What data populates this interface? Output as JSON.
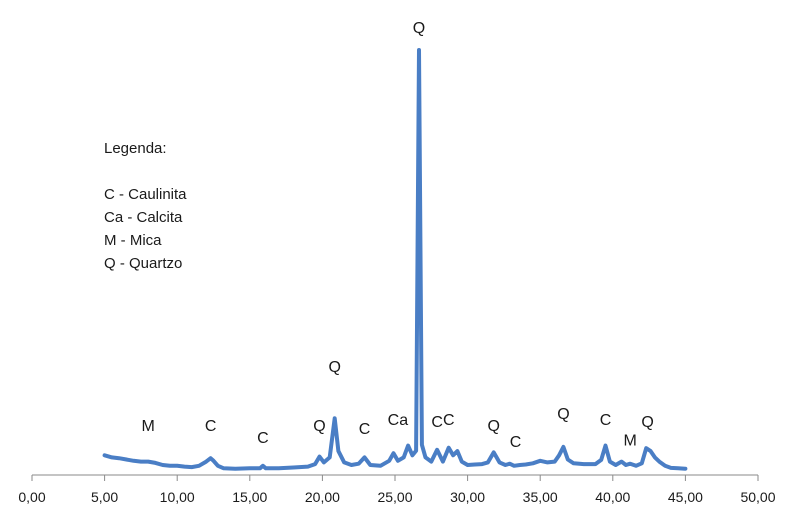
{
  "chart_data": {
    "type": "line",
    "title": "",
    "xlabel": "",
    "ylabel": "",
    "xlim": [
      0,
      50
    ],
    "ylim": [
      0,
      1
    ],
    "x_ticks": [
      "0,00",
      "5,00",
      "10,00",
      "15,00",
      "20,00",
      "25,00",
      "30,00",
      "35,00",
      "40,00",
      "45,00",
      "50,00"
    ],
    "grid": false,
    "color": "#4a7ec5",
    "series": [
      {
        "x": [
          5.0,
          5.5,
          6.0,
          6.5,
          7.0,
          7.5,
          8.0,
          8.5,
          9.0,
          9.5,
          10.0,
          10.5,
          11.0,
          11.5,
          12.0,
          12.3,
          12.5,
          12.8,
          13.2,
          14.0,
          15.0,
          15.7,
          15.9,
          16.1,
          17.0,
          18.0,
          19.0,
          19.5,
          19.8,
          20.1,
          20.5,
          20.85,
          21.1,
          21.5,
          22.0,
          22.5,
          22.9,
          23.3,
          24.0,
          24.6,
          24.9,
          25.2,
          25.6,
          25.9,
          26.2,
          26.45,
          26.65,
          26.85,
          27.1,
          27.5,
          27.9,
          28.3,
          28.7,
          29.0,
          29.3,
          29.6,
          30.0,
          30.5,
          31.0,
          31.4,
          31.8,
          32.2,
          32.6,
          32.9,
          33.2,
          33.6,
          34.0,
          34.5,
          35.0,
          35.5,
          36.0,
          36.3,
          36.6,
          36.9,
          37.3,
          38.0,
          38.8,
          39.2,
          39.5,
          39.8,
          40.2,
          40.6,
          40.9,
          41.2,
          41.6,
          42.0,
          42.3,
          42.6,
          42.9,
          43.2,
          43.6,
          44.0,
          44.5,
          45.0
        ],
        "y": [
          0.035,
          0.03,
          0.028,
          0.025,
          0.022,
          0.02,
          0.02,
          0.017,
          0.012,
          0.01,
          0.01,
          0.008,
          0.007,
          0.01,
          0.02,
          0.028,
          0.022,
          0.01,
          0.004,
          0.003,
          0.004,
          0.004,
          0.01,
          0.004,
          0.004,
          0.006,
          0.008,
          0.014,
          0.032,
          0.018,
          0.03,
          0.123,
          0.045,
          0.018,
          0.012,
          0.015,
          0.03,
          0.012,
          0.01,
          0.022,
          0.04,
          0.022,
          0.03,
          0.058,
          0.035,
          0.046,
          1.0,
          0.06,
          0.03,
          0.02,
          0.048,
          0.02,
          0.053,
          0.035,
          0.045,
          0.02,
          0.012,
          0.013,
          0.014,
          0.018,
          0.042,
          0.018,
          0.012,
          0.015,
          0.01,
          0.012,
          0.013,
          0.016,
          0.022,
          0.018,
          0.02,
          0.035,
          0.055,
          0.025,
          0.016,
          0.014,
          0.014,
          0.024,
          0.058,
          0.02,
          0.012,
          0.02,
          0.012,
          0.015,
          0.01,
          0.016,
          0.052,
          0.045,
          0.03,
          0.02,
          0.01,
          0.005,
          0.004,
          0.003
        ]
      }
    ],
    "annotations": [
      {
        "text": "M",
        "x": 8.0,
        "y": 0.093
      },
      {
        "text": "C",
        "x": 12.3,
        "y": 0.093
      },
      {
        "text": "C",
        "x": 15.9,
        "y": 0.064
      },
      {
        "text": "Q",
        "x": 19.8,
        "y": 0.093
      },
      {
        "text": "Q",
        "x": 20.85,
        "y": 0.233
      },
      {
        "text": "C",
        "x": 22.9,
        "y": 0.086
      },
      {
        "text": "Ca",
        "x": 25.2,
        "y": 0.107
      },
      {
        "text": "Q",
        "x": 26.65,
        "y": 1.04
      },
      {
        "text": "C",
        "x": 27.9,
        "y": 0.102
      },
      {
        "text": "C",
        "x": 28.7,
        "y": 0.107
      },
      {
        "text": "Q",
        "x": 31.8,
        "y": 0.093
      },
      {
        "text": "C",
        "x": 33.3,
        "y": 0.055
      },
      {
        "text": "Q",
        "x": 36.6,
        "y": 0.121
      },
      {
        "text": "C",
        "x": 39.5,
        "y": 0.107
      },
      {
        "text": "M",
        "x": 41.2,
        "y": 0.058
      },
      {
        "text": "Q",
        "x": 42.4,
        "y": 0.102
      }
    ]
  },
  "legend": {
    "title": "Legenda:",
    "items": [
      "C - Caulinita",
      "Ca - Calcita",
      "M - Mica",
      "Q - Quartzo"
    ]
  }
}
